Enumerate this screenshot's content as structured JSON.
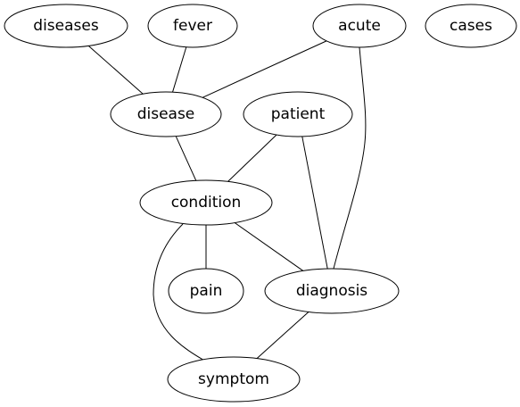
{
  "graph": {
    "nodes": [
      {
        "id": "diseases",
        "label": "diseases"
      },
      {
        "id": "fever",
        "label": "fever"
      },
      {
        "id": "acute",
        "label": "acute"
      },
      {
        "id": "cases",
        "label": "cases"
      },
      {
        "id": "disease",
        "label": "disease"
      },
      {
        "id": "patient",
        "label": "patient"
      },
      {
        "id": "condition",
        "label": "condition"
      },
      {
        "id": "pain",
        "label": "pain"
      },
      {
        "id": "diagnosis",
        "label": "diagnosis"
      },
      {
        "id": "symptom",
        "label": "symptom"
      }
    ],
    "edges": [
      {
        "from": "diseases",
        "to": "disease"
      },
      {
        "from": "fever",
        "to": "disease"
      },
      {
        "from": "acute",
        "to": "disease"
      },
      {
        "from": "acute",
        "to": "diagnosis"
      },
      {
        "from": "disease",
        "to": "condition"
      },
      {
        "from": "patient",
        "to": "condition"
      },
      {
        "from": "patient",
        "to": "diagnosis"
      },
      {
        "from": "condition",
        "to": "pain"
      },
      {
        "from": "condition",
        "to": "diagnosis"
      },
      {
        "from": "condition",
        "to": "symptom"
      },
      {
        "from": "diagnosis",
        "to": "symptom"
      }
    ]
  }
}
